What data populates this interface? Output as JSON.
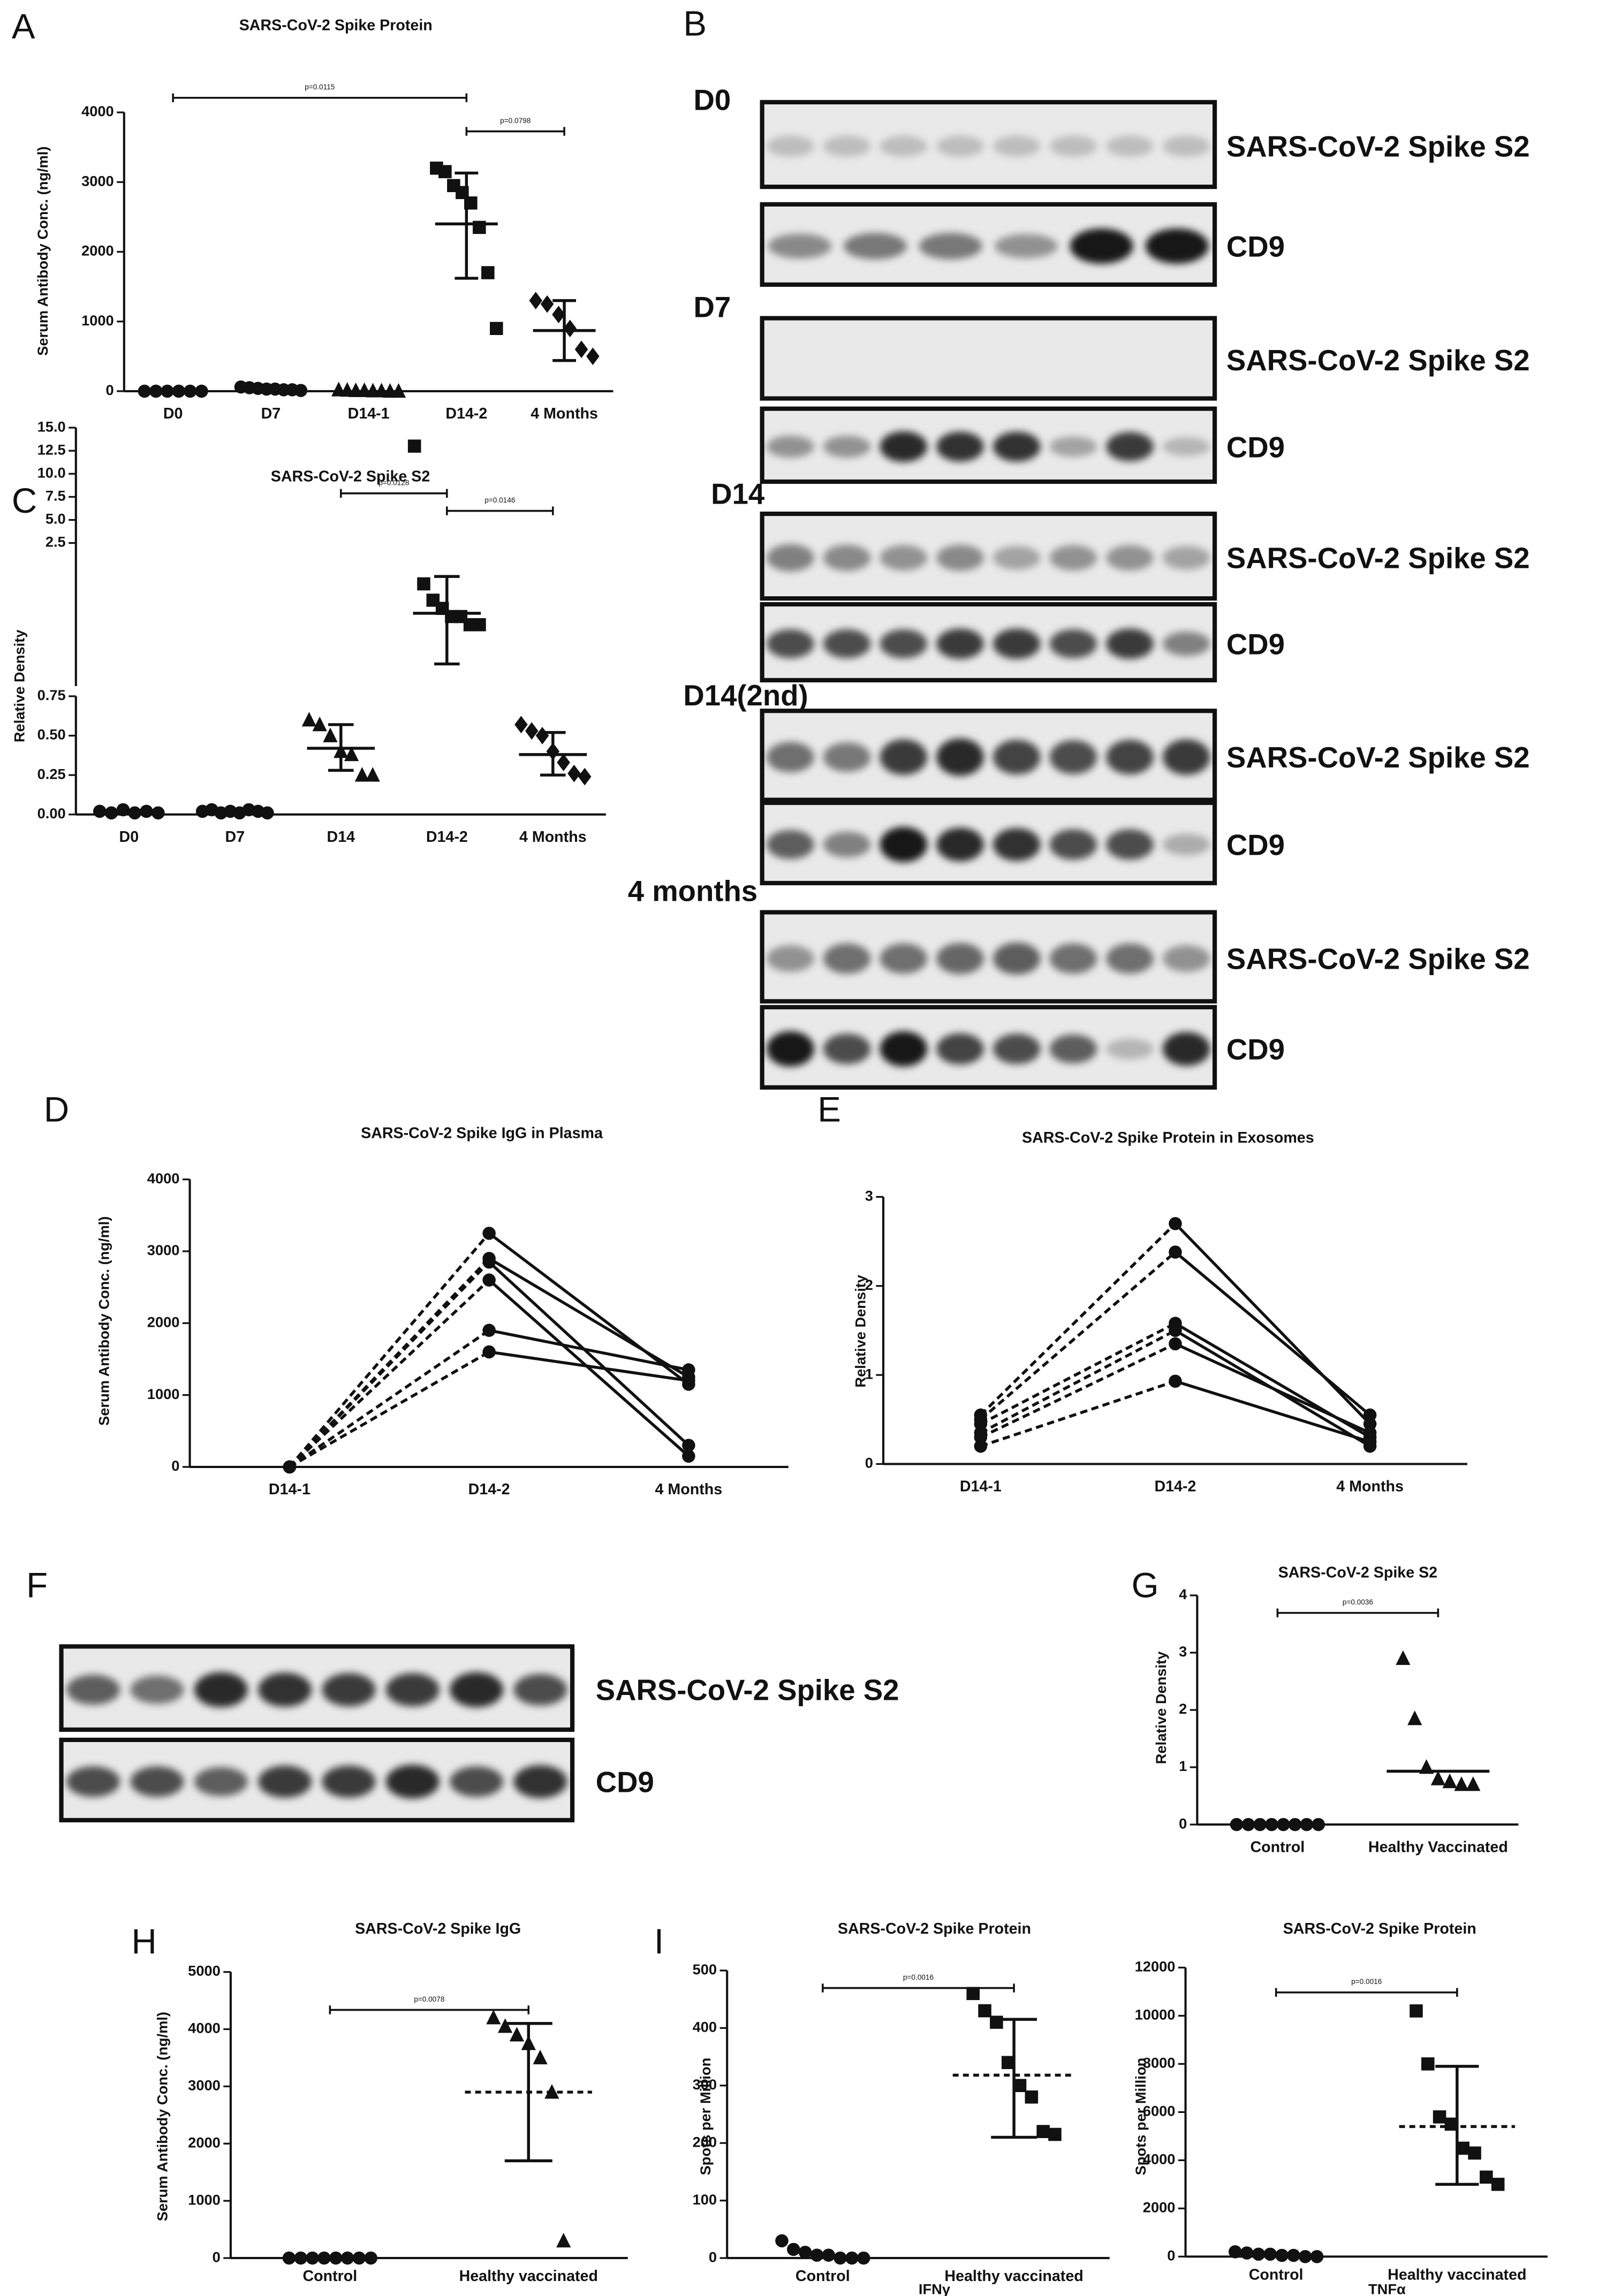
{
  "chart_data": [
    {
      "type": "scatter",
      "panel": "A",
      "title": "SARS-CoV-2 Spike Protein",
      "ylabel": "Serum Antibody Conc. (ng/ml)",
      "color": "#111111",
      "categories": [
        "D0",
        "D7",
        "D14-1",
        "D14-2",
        "4 Months"
      ],
      "markers": [
        "circle",
        "circle",
        "triangle",
        "square",
        "diamond"
      ],
      "points": [
        [
          0,
          0,
          0,
          0,
          0,
          0
        ],
        [
          60,
          50,
          40,
          30,
          30,
          20,
          20,
          10
        ],
        [
          20,
          15,
          10,
          10,
          5,
          5,
          0,
          0
        ],
        [
          3200,
          3150,
          2950,
          2850,
          2700,
          2350,
          1700,
          900
        ],
        [
          1300,
          1250,
          1100,
          900,
          600,
          500
        ]
      ],
      "center": [
        null,
        null,
        null,
        2400,
        870
      ],
      "center_style": "solid",
      "whisker": [
        null,
        null,
        null,
        [
          1620,
          3130
        ],
        [
          440,
          1300
        ]
      ],
      "brackets": [
        {
          "between": [
            "D0",
            "D14-2"
          ],
          "label": "p=0.0115"
        },
        {
          "between": [
            "D14-2",
            "4 Months"
          ],
          "label": "p=0.0798"
        }
      ],
      "ylim": [
        0,
        4000
      ],
      "yticks": [
        0,
        1000,
        2000,
        3000,
        4000
      ]
    },
    {
      "type": "scatter",
      "panel": "C",
      "title": "SARS-CoV-2 Spike S2",
      "ylabel": "Relative Density",
      "color": "#111111",
      "categories": [
        "D0",
        "D7",
        "D14",
        "D14-2",
        "4 Months"
      ],
      "markers": [
        "circle",
        "circle",
        "triangle",
        "square",
        "diamond"
      ],
      "points": [
        [
          0.02,
          0.01,
          0.03,
          0.01,
          0.02,
          0.01
        ],
        [
          0.02,
          0.03,
          0.01,
          0.02,
          0.01,
          0.03,
          0.02,
          0.01
        ],
        [
          0.6,
          0.57,
          0.5,
          0.4,
          0.38,
          0.25,
          0.25
        ],
        [
          13,
          2.0,
          1.8,
          1.7,
          1.6,
          1.6,
          1.5,
          1.5
        ],
        [
          0.57,
          0.53,
          0.5,
          0.4,
          0.33,
          0.26,
          0.24
        ]
      ],
      "center": [
        null,
        null,
        0.42,
        1.64,
        0.38
      ],
      "center_style": "solid",
      "whisker": [
        null,
        null,
        [
          0.28,
          0.57
        ],
        [
          1.02,
          2.09
        ],
        [
          0.25,
          0.52
        ]
      ],
      "brackets": [
        {
          "between": [
            "D14",
            "D14-2"
          ],
          "label": "p=0.0128"
        },
        {
          "between": [
            "D14-2",
            "4 Months"
          ],
          "label": "p=0.0146"
        }
      ],
      "ylim": [
        0,
        15
      ],
      "ysegments": [
        [
          0,
          0.75
        ],
        [
          0.75,
          2.5
        ],
        [
          2.5,
          15
        ]
      ],
      "yticks": [
        {
          "value": 0,
          "label": "0.00"
        },
        0.25,
        {
          "value": 0.5,
          "label": "0.50"
        },
        0.75,
        2.5,
        {
          "value": 5,
          "label": "5.0"
        },
        7.5,
        {
          "value": 10,
          "label": "10.0"
        },
        12.5,
        {
          "value": 15,
          "label": "15.0"
        }
      ]
    },
    {
      "type": "line",
      "panel": "D",
      "title": "SARS-CoV-2 Spike IgG in Plasma",
      "ylabel": "Serum Antibody Conc. (ng/ml)",
      "color": "#111111",
      "categories": [
        "D14-1",
        "D14-2",
        "4 Months"
      ],
      "segment_styles": [
        "dashed",
        "solid"
      ],
      "marker": "circle",
      "series": [
        {
          "values": [
            0,
            3250,
            1150
          ]
        },
        {
          "values": [
            0,
            2900,
            1250
          ]
        },
        {
          "values": [
            0,
            2850,
            300
          ]
        },
        {
          "values": [
            0,
            2600,
            150
          ]
        },
        {
          "values": [
            0,
            1900,
            1350
          ]
        },
        {
          "values": [
            0,
            1600,
            1200
          ]
        }
      ],
      "ylim": [
        0,
        4000
      ],
      "yticks": [
        0,
        1000,
        2000,
        3000,
        4000
      ]
    },
    {
      "type": "line",
      "panel": "E",
      "title": "SARS-CoV-2 Spike Protein in Exosomes",
      "ylabel": "Relative Density",
      "color": "#111111",
      "categories": [
        "D14-1",
        "D14-2",
        "4 Months"
      ],
      "segment_styles": [
        "dashed",
        "solid"
      ],
      "marker": "circle",
      "series": [
        {
          "values": [
            0.55,
            2.7,
            0.45
          ]
        },
        {
          "values": [
            0.5,
            2.38,
            0.55
          ]
        },
        {
          "values": [
            0.45,
            1.58,
            0.3
          ]
        },
        {
          "values": [
            0.35,
            1.5,
            0.2
          ]
        },
        {
          "values": [
            0.3,
            1.35,
            0.35
          ]
        },
        {
          "values": [
            0.2,
            0.93,
            0.25
          ]
        }
      ],
      "ylim": [
        0,
        3
      ],
      "yticks": [
        0,
        1,
        2,
        3
      ]
    },
    {
      "type": "scatter",
      "panel": "G",
      "title": "SARS-CoV-2 Spike S2",
      "ylabel": "Relative Density",
      "color": "#111111",
      "categories": [
        "Control",
        "Healthy Vaccinated"
      ],
      "markers": [
        "circle",
        "triangle"
      ],
      "points": [
        [
          0,
          0,
          0,
          0,
          0,
          0,
          0,
          0
        ],
        [
          2.9,
          1.85,
          1.0,
          0.8,
          0.75,
          0.7,
          0.7
        ]
      ],
      "center": [
        null,
        0.93
      ],
      "center_style": "solid",
      "whisker": [
        null,
        null
      ],
      "brackets": [
        {
          "between": [
            "Control",
            "Healthy Vaccinated"
          ],
          "label": "p=0.0036"
        }
      ],
      "ylim": [
        0,
        4
      ],
      "yticks": [
        0,
        1,
        2,
        3,
        4
      ]
    },
    {
      "type": "scatter",
      "panel": "H",
      "title": "SARS-CoV-2 Spike IgG",
      "ylabel": "Serum Antibody Conc. (ng/ml)",
      "color": "#111111",
      "categories": [
        "Control",
        "Healthy vaccinated"
      ],
      "markers": [
        "circle",
        "triangle"
      ],
      "points": [
        [
          0,
          0,
          0,
          0,
          0,
          0,
          0,
          0
        ],
        [
          4200,
          4050,
          3900,
          3750,
          3500,
          2900,
          300
        ]
      ],
      "center": [
        null,
        2900
      ],
      "center_style": "dashed",
      "whisker": [
        null,
        [
          1700,
          4100
        ]
      ],
      "brackets": [
        {
          "between": [
            "Control",
            "Healthy vaccinated"
          ],
          "label": "p=0.0078"
        }
      ],
      "ylim": [
        0,
        5000
      ],
      "yticks": [
        0,
        1000,
        2000,
        3000,
        4000,
        5000
      ]
    },
    {
      "type": "scatter",
      "panel": "I",
      "title": "SARS-CoV-2 Spike Protein",
      "ylabel": "Spots per Million",
      "xlabel": "IFNγ",
      "color": "#111111",
      "categories": [
        "Control",
        "Healthy vaccinated"
      ],
      "markers": [
        "circle",
        "square"
      ],
      "points": [
        [
          30,
          15,
          10,
          5,
          5,
          0,
          0,
          0
        ],
        [
          460,
          430,
          410,
          340,
          300,
          280,
          220,
          215
        ]
      ],
      "center": [
        null,
        318
      ],
      "center_style": "dashed",
      "whisker": [
        null,
        [
          210,
          415
        ]
      ],
      "brackets": [
        {
          "between": [
            "Control",
            "Healthy vaccinated"
          ],
          "label": "p=0.0016"
        }
      ],
      "ylim": [
        0,
        500
      ],
      "yticks": [
        0,
        100,
        200,
        300,
        400,
        500
      ]
    },
    {
      "type": "scatter",
      "title": "SARS-CoV-2 Spike Protein",
      "ylabel": "Spots per Million",
      "xlabel": "TNFα",
      "color": "#111111",
      "categories": [
        "Control",
        "Healthy vaccinated"
      ],
      "markers": [
        "circle",
        "square"
      ],
      "points": [
        [
          200,
          150,
          100,
          100,
          50,
          50,
          0,
          0
        ],
        [
          10200,
          8000,
          5800,
          5500,
          4500,
          4300,
          3300,
          3000
        ]
      ],
      "center": [
        null,
        5400
      ],
      "center_style": "dashed",
      "whisker": [
        null,
        [
          3000,
          7900
        ]
      ],
      "brackets": [
        {
          "between": [
            "Control",
            "Healthy vaccinated"
          ],
          "label": "p=0.0016"
        }
      ],
      "ylim": [
        0,
        12000
      ],
      "yticks": [
        0,
        2000,
        4000,
        6000,
        8000,
        10000,
        12000
      ]
    }
  ],
  "figure_b": {
    "letter": "B",
    "groups": [
      {
        "label": "D0",
        "blots": [
          "SARS-CoV-2 Spike S2",
          "CD9"
        ]
      },
      {
        "label": "D7",
        "blots": [
          "SARS-CoV-2 Spike S2",
          "CD9"
        ]
      },
      {
        "label": "D14",
        "blots": [
          "SARS-CoV-2 Spike S2",
          "CD9"
        ]
      },
      {
        "label": "D14(2nd)",
        "blots": [
          "SARS-CoV-2 Spike S2",
          "CD9"
        ]
      },
      {
        "label": "4 months",
        "blots": [
          "SARS-CoV-2 Spike S2",
          "CD9"
        ]
      }
    ]
  },
  "figure_f": {
    "letter": "F",
    "blots": [
      "SARS-CoV-2 Spike S2",
      "CD9"
    ]
  }
}
